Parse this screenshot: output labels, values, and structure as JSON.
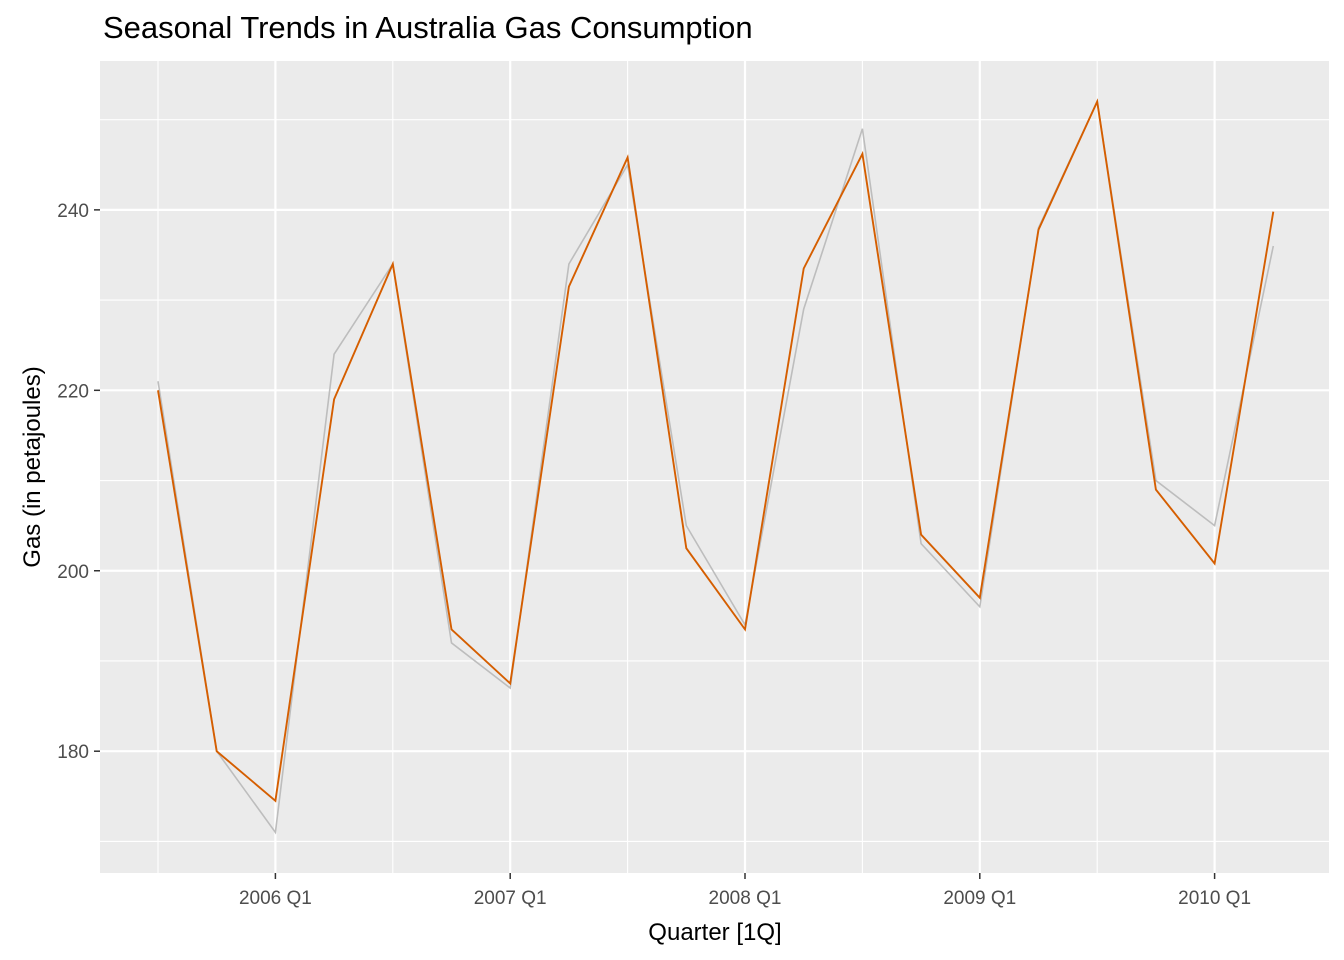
{
  "chart_data": {
    "type": "line",
    "title": "Seasonal Trends in Australia Gas Consumption",
    "xlabel": "Quarter [1Q]",
    "ylabel": "Gas (in petajoules)",
    "x": [
      "2005 Q3",
      "2005 Q4",
      "2006 Q1",
      "2006 Q2",
      "2006 Q3",
      "2006 Q4",
      "2007 Q1",
      "2007 Q2",
      "2007 Q3",
      "2007 Q4",
      "2008 Q1",
      "2008 Q2",
      "2008 Q3",
      "2008 Q4",
      "2009 Q1",
      "2009 Q2",
      "2009 Q3",
      "2009 Q4",
      "2010 Q1",
      "2010 Q2"
    ],
    "x_ticks": [
      "2006 Q1",
      "2007 Q1",
      "2008 Q1",
      "2009 Q1",
      "2010 Q1"
    ],
    "y_ticks": [
      180,
      200,
      220,
      240
    ],
    "ylim": [
      166.5,
      256.5
    ],
    "grid": true,
    "series": [
      {
        "name": "",
        "color": "#bdbdbd",
        "values": [
          221,
          180,
          171,
          224,
          234,
          192,
          187,
          234,
          245,
          205,
          194,
          229,
          249,
          203,
          196,
          238,
          252,
          210,
          205,
          236
        ]
      },
      {
        "name": "",
        "color": "#d55e00",
        "values": [
          220,
          180,
          174.5,
          219,
          234,
          193.5,
          187.5,
          231.5,
          245.8,
          202.5,
          193.5,
          233.5,
          246.2,
          204,
          197,
          237.8,
          252,
          209,
          200.8,
          239.8
        ]
      }
    ]
  }
}
